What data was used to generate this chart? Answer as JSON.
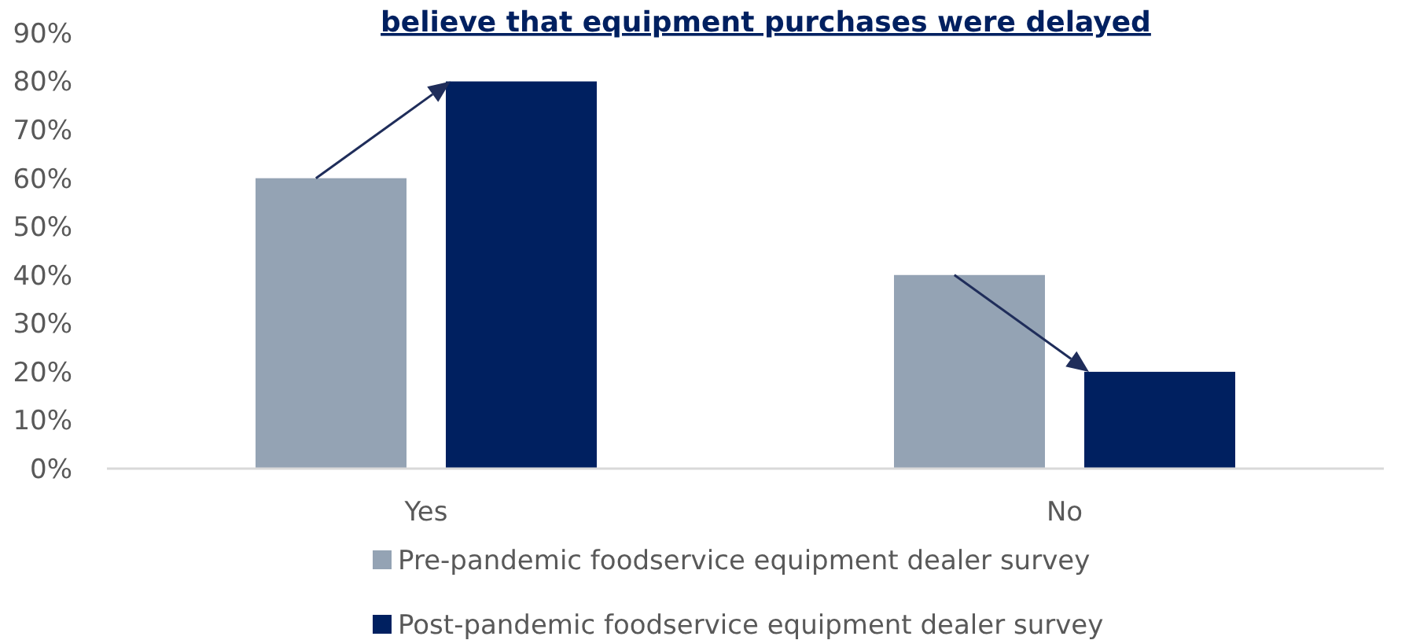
{
  "chart_data": {
    "type": "bar",
    "title": "believe that equipment purchases were delayed",
    "categories": [
      "Yes",
      "No"
    ],
    "series": [
      {
        "name": "Pre-pandemic foodservice equipment dealer survey",
        "color": "#94a3b4",
        "values": [
          60,
          40
        ]
      },
      {
        "name": "Post-pandemic foodservice equipment dealer survey",
        "color": "#002060",
        "values": [
          80,
          20
        ]
      }
    ],
    "ylim": [
      0,
      90
    ],
    "yticks": [
      {
        "value": 0,
        "label": "0%"
      },
      {
        "value": 10,
        "label": "10%"
      },
      {
        "value": 20,
        "label": "20%"
      },
      {
        "value": 30,
        "label": "30%"
      },
      {
        "value": 40,
        "label": "40%"
      },
      {
        "value": 50,
        "label": "50%"
      },
      {
        "value": 60,
        "label": "60%"
      },
      {
        "value": 70,
        "label": "70%"
      },
      {
        "value": 80,
        "label": "80%"
      },
      {
        "value": 90,
        "label": "90%"
      }
    ],
    "grid": false,
    "legend": "bottom"
  }
}
